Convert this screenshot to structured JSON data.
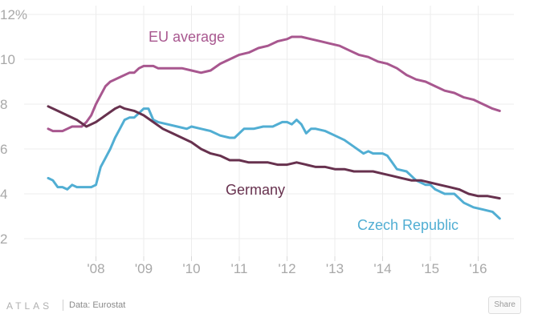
{
  "chart_data": {
    "type": "line",
    "title": "",
    "xlabel": "",
    "ylabel": "",
    "y_unit_suffix": "%",
    "ylim": [
      1.5,
      12.5
    ],
    "yticks": [
      2,
      4,
      6,
      8,
      10,
      12
    ],
    "ytick_labels": [
      "2",
      "4",
      "6",
      "8",
      "10",
      "12%"
    ],
    "xlim": [
      2007.0,
      2016.6
    ],
    "xticks": [
      2008,
      2009,
      2010,
      2011,
      2012,
      2013,
      2014,
      2015,
      2016
    ],
    "xtick_labels": [
      "'08",
      "'09",
      "'10",
      "'11",
      "'12",
      "'13",
      "'14",
      "'15",
      "'16"
    ],
    "grid": true,
    "series": [
      {
        "name": "EU average",
        "color": "#a8578f",
        "x": [
          2007.0,
          2007.1,
          2007.3,
          2007.4,
          2007.5,
          2007.6,
          2007.7,
          2007.8,
          2007.9,
          2008.0,
          2008.1,
          2008.2,
          2008.3,
          2008.5,
          2008.7,
          2008.8,
          2008.9,
          2009.0,
          2009.1,
          2009.2,
          2009.3,
          2009.4,
          2009.6,
          2009.8,
          2010.0,
          2010.2,
          2010.4,
          2010.6,
          2010.8,
          2011.0,
          2011.2,
          2011.4,
          2011.6,
          2011.8,
          2012.0,
          2012.1,
          2012.2,
          2012.3,
          2012.5,
          2012.7,
          2012.9,
          2013.1,
          2013.3,
          2013.5,
          2013.7,
          2013.9,
          2014.1,
          2014.3,
          2014.5,
          2014.7,
          2014.9,
          2015.1,
          2015.3,
          2015.5,
          2015.7,
          2015.9,
          2016.1,
          2016.3,
          2016.45
        ],
        "values": [
          6.9,
          6.8,
          6.8,
          6.9,
          7.0,
          7.0,
          7.0,
          7.2,
          7.5,
          8.0,
          8.4,
          8.8,
          9.0,
          9.2,
          9.4,
          9.4,
          9.6,
          9.7,
          9.7,
          9.7,
          9.6,
          9.6,
          9.6,
          9.6,
          9.5,
          9.4,
          9.5,
          9.8,
          10.0,
          10.2,
          10.3,
          10.5,
          10.6,
          10.8,
          10.9,
          11.0,
          11.0,
          11.0,
          10.9,
          10.8,
          10.7,
          10.6,
          10.4,
          10.2,
          10.1,
          9.9,
          9.8,
          9.6,
          9.3,
          9.1,
          9.0,
          8.8,
          8.6,
          8.5,
          8.3,
          8.2,
          8.0,
          7.8,
          7.7
        ]
      },
      {
        "name": "Czech Republic",
        "color": "#51aed3",
        "x": [
          2007.0,
          2007.1,
          2007.2,
          2007.3,
          2007.4,
          2007.5,
          2007.6,
          2007.7,
          2007.8,
          2007.9,
          2008.0,
          2008.1,
          2008.2,
          2008.3,
          2008.4,
          2008.5,
          2008.6,
          2008.7,
          2008.8,
          2008.9,
          2009.0,
          2009.1,
          2009.2,
          2009.3,
          2009.5,
          2009.7,
          2009.9,
          2010.0,
          2010.2,
          2010.4,
          2010.6,
          2010.8,
          2010.9,
          2011.0,
          2011.1,
          2011.3,
          2011.5,
          2011.7,
          2011.9,
          2012.0,
          2012.1,
          2012.2,
          2012.3,
          2012.4,
          2012.5,
          2012.6,
          2012.8,
          2013.0,
          2013.2,
          2013.4,
          2013.6,
          2013.7,
          2013.8,
          2013.9,
          2014.0,
          2014.1,
          2014.2,
          2014.3,
          2014.5,
          2014.7,
          2014.9,
          2015.0,
          2015.1,
          2015.3,
          2015.5,
          2015.7,
          2015.9,
          2016.1,
          2016.3,
          2016.45
        ],
        "values": [
          4.7,
          4.6,
          4.3,
          4.3,
          4.2,
          4.4,
          4.3,
          4.3,
          4.3,
          4.3,
          4.4,
          5.2,
          5.6,
          6.0,
          6.5,
          6.9,
          7.3,
          7.4,
          7.4,
          7.6,
          7.8,
          7.8,
          7.3,
          7.2,
          7.1,
          7.0,
          6.9,
          7.0,
          6.9,
          6.8,
          6.6,
          6.5,
          6.5,
          6.7,
          6.9,
          6.9,
          7.0,
          7.0,
          7.2,
          7.2,
          7.1,
          7.3,
          7.1,
          6.7,
          6.9,
          6.9,
          6.8,
          6.6,
          6.4,
          6.1,
          5.8,
          5.9,
          5.8,
          5.8,
          5.8,
          5.7,
          5.4,
          5.1,
          5.0,
          4.6,
          4.4,
          4.4,
          4.2,
          4.0,
          4.0,
          3.6,
          3.4,
          3.3,
          3.2,
          2.9
        ]
      },
      {
        "name": "Germany",
        "color": "#67314e",
        "x": [
          2007.0,
          2007.2,
          2007.4,
          2007.6,
          2007.8,
          2007.9,
          2008.0,
          2008.2,
          2008.4,
          2008.5,
          2008.6,
          2008.8,
          2009.0,
          2009.2,
          2009.4,
          2009.6,
          2009.8,
          2010.0,
          2010.2,
          2010.4,
          2010.6,
          2010.8,
          2011.0,
          2011.2,
          2011.4,
          2011.6,
          2011.8,
          2012.0,
          2012.2,
          2012.4,
          2012.6,
          2012.8,
          2013.0,
          2013.2,
          2013.4,
          2013.6,
          2013.8,
          2014.0,
          2014.2,
          2014.4,
          2014.6,
          2014.8,
          2015.0,
          2015.2,
          2015.4,
          2015.6,
          2015.8,
          2016.0,
          2016.2,
          2016.45
        ],
        "values": [
          7.9,
          7.7,
          7.5,
          7.3,
          7.0,
          7.1,
          7.2,
          7.5,
          7.8,
          7.9,
          7.8,
          7.7,
          7.5,
          7.2,
          6.9,
          6.7,
          6.5,
          6.3,
          6.0,
          5.8,
          5.7,
          5.5,
          5.5,
          5.4,
          5.4,
          5.4,
          5.3,
          5.3,
          5.4,
          5.3,
          5.2,
          5.2,
          5.1,
          5.1,
          5.0,
          5.0,
          5.0,
          4.9,
          4.8,
          4.7,
          4.6,
          4.6,
          4.5,
          4.4,
          4.3,
          4.2,
          4.0,
          3.9,
          3.9,
          3.8
        ]
      }
    ]
  },
  "footer": {
    "brand": "ATLAS",
    "source": "Data: Eurostat",
    "share_label": "Share"
  }
}
